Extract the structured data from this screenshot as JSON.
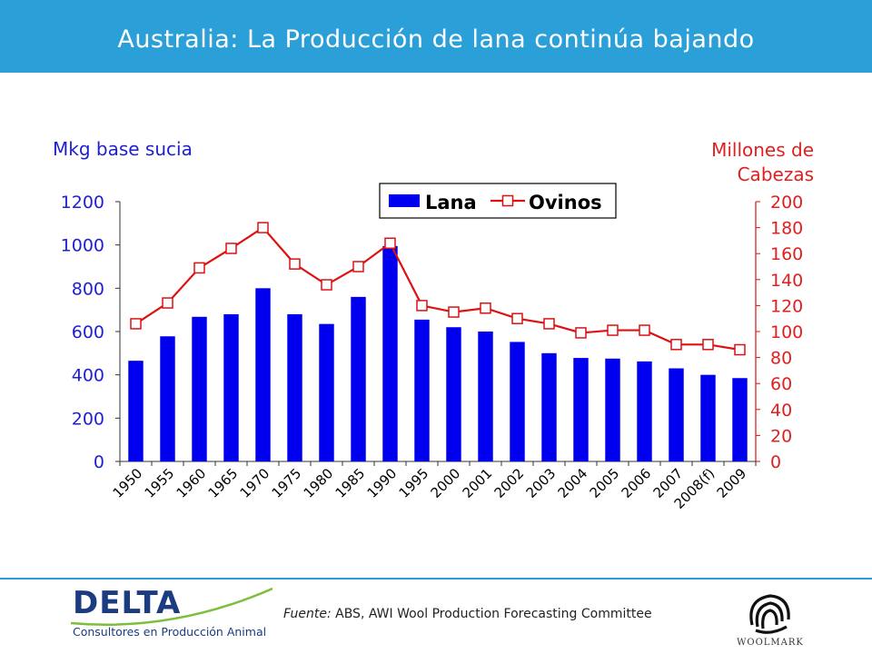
{
  "header": {
    "title": "Australia: La Producción de lana continúa bajando"
  },
  "footer": {
    "source_label": "Fuente:",
    "source_text": "ABS, AWI Wool Production Forecasting Committee",
    "logo_main": "DELTA",
    "logo_sub": "Consultores en Producción Animal",
    "logo_right": "WOOLMARK"
  },
  "chart_data": {
    "type": "bar",
    "title": "",
    "categories": [
      "1950",
      "1955",
      "1960",
      "1965",
      "1970",
      "1975",
      "1980",
      "1985",
      "1990",
      "1995",
      "2000",
      "2001",
      "2002",
      "2003",
      "2004",
      "2005",
      "2006",
      "2007",
      "2008(f)",
      "2009"
    ],
    "y_left_label": "Mkg base sucia",
    "y_right_label_line1": "Millones de",
    "y_right_label_line2": "Cabezas",
    "y_left_ticks": [
      "0",
      "200",
      "400",
      "600",
      "800",
      "1000",
      "1200"
    ],
    "y_right_ticks": [
      "0",
      "20",
      "40",
      "60",
      "80",
      "100",
      "120",
      "140",
      "160",
      "180",
      "200"
    ],
    "ylim_left": [
      0,
      1200
    ],
    "ylim_right": [
      0,
      200
    ],
    "legend_position": "top-right",
    "colors": {
      "lana": "#0000ee",
      "ovinos": "#dd1111",
      "left_axis_text": "#1f1fd0",
      "right_axis_text": "#e02020"
    },
    "series": [
      {
        "name": "Lana",
        "axis": "left",
        "type": "bar",
        "values": [
          465,
          578,
          668,
          680,
          800,
          680,
          635,
          760,
          995,
          655,
          620,
          600,
          552,
          500,
          478,
          475,
          462,
          430,
          400,
          385
        ]
      },
      {
        "name": "Ovinos",
        "axis": "right",
        "type": "line",
        "values": [
          106,
          122,
          149,
          164,
          180,
          152,
          136,
          150,
          168,
          120,
          115,
          118,
          110,
          106,
          99,
          101,
          101,
          90,
          90,
          86
        ]
      }
    ]
  }
}
